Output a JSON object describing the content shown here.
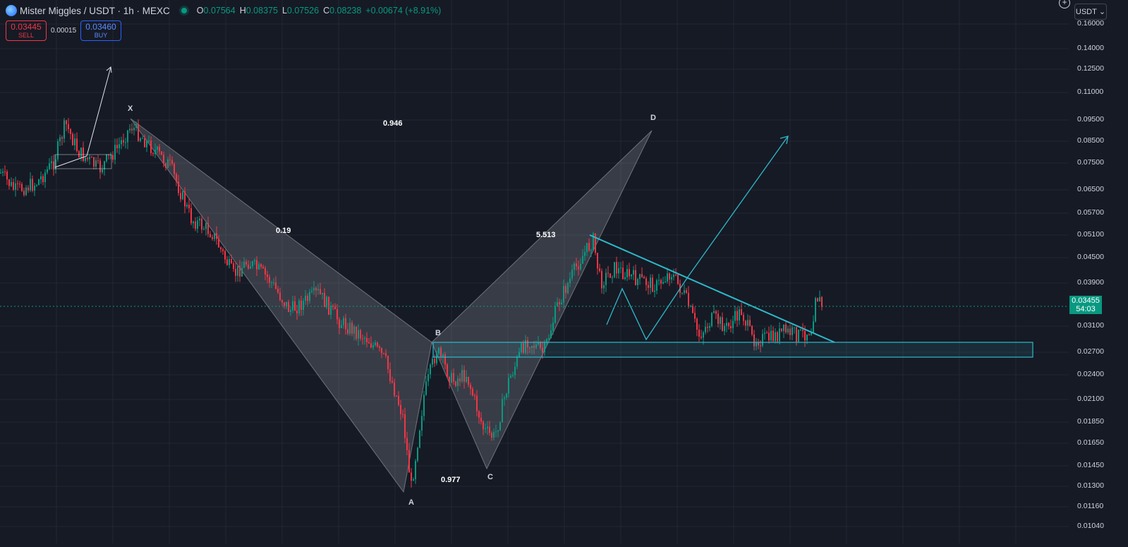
{
  "header": {
    "title": "Mister Miggles / USDT · 1h · MEXC",
    "open_key": "O",
    "open": "0.07564",
    "high_key": "H",
    "high": "0.08375",
    "low_key": "L",
    "low": "0.07526",
    "close_key": "C",
    "close": "0.08238",
    "change": "+0.00674 (+8.91%)"
  },
  "trade": {
    "sell_price": "0.03445",
    "sell_label": "SELL",
    "spread": "0.00015",
    "buy_price": "0.03460",
    "buy_label": "BUY"
  },
  "currency": "USDT",
  "price_axis": [
    "0.16000",
    "0.14000",
    "0.12500",
    "0.11000",
    "0.09500",
    "0.08500",
    "0.07500",
    "0.06500",
    "0.05700",
    "0.05100",
    "0.04500",
    "0.03900",
    "0.03100",
    "0.02700",
    "0.02400",
    "0.02100",
    "0.01850",
    "0.01650",
    "0.01450",
    "0.01300",
    "0.01160",
    "0.01040"
  ],
  "current_price": {
    "price": "0.03455",
    "countdown": "54:03"
  },
  "pattern": {
    "points": {
      "x": "X",
      "a": "A",
      "b": "B",
      "c": "C",
      "d": "D"
    },
    "ratios": {
      "xb": "0.19",
      "ac": "0.977",
      "bd": "5.513",
      "xd": "0.946"
    }
  },
  "colors": {
    "background": "#161a25",
    "up": "#089981",
    "down": "#f23645",
    "drawing": "#2eb9c9",
    "harmonic_fill": "#9598a1"
  }
}
